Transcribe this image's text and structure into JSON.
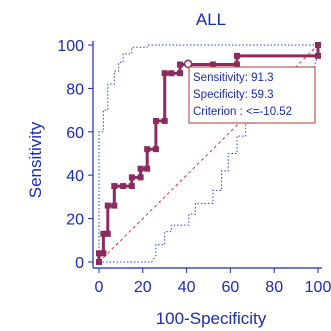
{
  "chart_data": {
    "type": "line",
    "title": "ALL",
    "xlabel": "100-Specificity",
    "ylabel": "Sensitivity",
    "xlim": [
      0,
      100
    ],
    "ylim": [
      0,
      100
    ],
    "x_ticks": [
      "0",
      "20",
      "40",
      "60",
      "80",
      "100"
    ],
    "y_ticks": [
      "0",
      "20",
      "40",
      "60",
      "80",
      "100"
    ],
    "grid": false,
    "colors": {
      "roc": "#8b2a5c",
      "marker": "#8b2a5c",
      "ci": "#2a3fd6",
      "diagonal": "#e53030",
      "axis": "#1a2bb5",
      "box_border": "#b03a3a",
      "text": "#1a2bb5"
    },
    "series": [
      {
        "role": "roc",
        "x": [
          0,
          0,
          2,
          2,
          4,
          4,
          7,
          7,
          11,
          11,
          15,
          15,
          19,
          19,
          22,
          22,
          26,
          26,
          30,
          30,
          33,
          33,
          37,
          37,
          41,
          41,
          52,
          52,
          63,
          63,
          100,
          100
        ],
        "y": [
          0,
          4,
          4,
          13,
          13,
          26,
          26,
          35,
          35,
          35,
          35,
          39,
          39,
          43,
          43,
          52,
          52,
          65,
          65,
          87,
          87,
          87,
          87,
          91,
          91,
          91,
          91,
          91,
          91,
          95,
          95,
          100
        ]
      },
      {
        "role": "ci_upper",
        "x": [
          0,
          0,
          2,
          2,
          4,
          4,
          7,
          7,
          9,
          9,
          11,
          11,
          15,
          15,
          22,
          22,
          30,
          30,
          100
        ],
        "y": [
          0,
          60,
          60,
          70,
          70,
          82,
          82,
          88,
          88,
          92,
          92,
          96,
          96,
          99,
          99,
          100,
          100,
          100,
          100
        ]
      },
      {
        "role": "ci_lower",
        "x": [
          0,
          24,
          26,
          26,
          30,
          30,
          33,
          33,
          41,
          41,
          44,
          44,
          52,
          52,
          56,
          56,
          59,
          59,
          63,
          63,
          67,
          67,
          72,
          72,
          81,
          81,
          96,
          100
        ],
        "y": [
          0,
          0,
          3,
          8,
          8,
          14,
          14,
          17,
          17,
          22,
          22,
          27,
          27,
          33,
          33,
          42,
          42,
          50,
          50,
          58,
          58,
          64,
          64,
          68,
          68,
          82,
          82,
          96
        ]
      },
      {
        "role": "diagonal",
        "x": [
          0,
          100
        ],
        "y": [
          0,
          100
        ]
      }
    ],
    "criterion_point": {
      "x": 40.7,
      "y": 91.3
    },
    "annotation": {
      "lines": [
        "Sensitivity: 91.3",
        "Specificity: 59.3",
        "Criterion : <=-10.52"
      ],
      "placement": "upper-right"
    }
  }
}
